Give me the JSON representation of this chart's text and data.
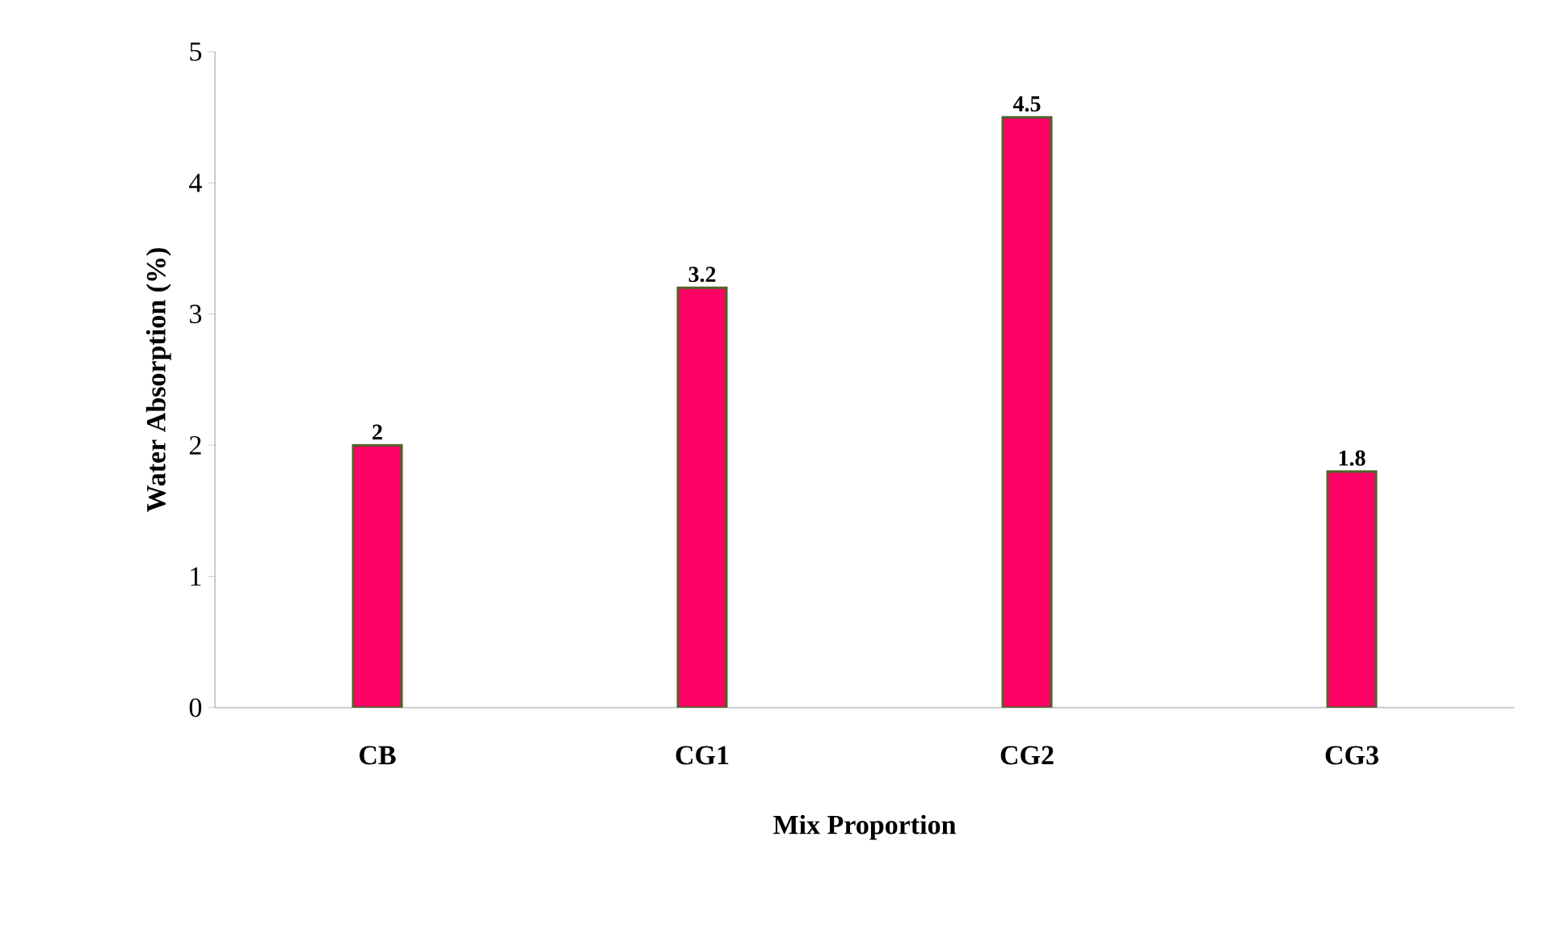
{
  "chart_data": {
    "type": "bar",
    "xlabel": "Mix Proportion",
    "ylabel": "Water Absorption (%)",
    "categories": [
      "CB",
      "CG1",
      "CG2",
      "CG3"
    ],
    "values": [
      2,
      3.2,
      4.5,
      1.8
    ],
    "color": "#ff0066",
    "ylim": [
      0,
      5
    ],
    "yticks": [
      0,
      1,
      2,
      3,
      4,
      5
    ],
    "data_labels": true
  }
}
